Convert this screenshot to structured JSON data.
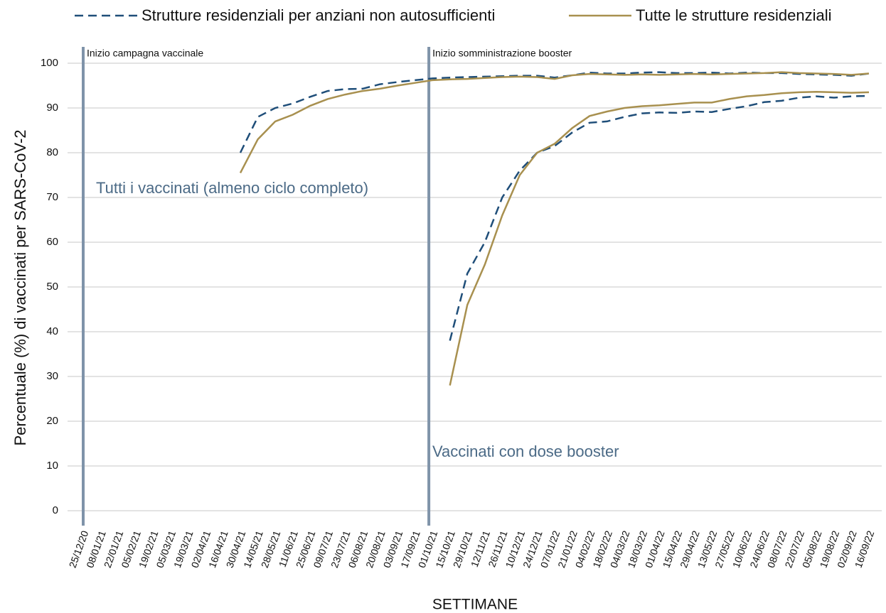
{
  "chart_data": {
    "type": "line",
    "y_label": "Percentuale (%) di vaccinati per SARS-CoV-2",
    "x_label": "SETTIMANE",
    "categories": [
      "25/12/20",
      "08/01/21",
      "22/01/21",
      "05/02/21",
      "19/02/21",
      "05/03/21",
      "19/03/21",
      "02/04/21",
      "16/04/21",
      "30/04/21",
      "14/05/21",
      "28/05/21",
      "11/06/21",
      "25/06/21",
      "09/07/21",
      "23/07/21",
      "06/08/21",
      "20/08/21",
      "03/09/21",
      "17/09/21",
      "01/10/21",
      "15/10/21",
      "29/10/21",
      "12/11/21",
      "26/11/21",
      "10/12/21",
      "24/12/21",
      "07/01/22",
      "21/01/22",
      "04/02/22",
      "18/02/22",
      "04/03/22",
      "18/03/22",
      "01/04/22",
      "15/04/22",
      "29/04/22",
      "13/05/22",
      "27/05/22",
      "10/06/22",
      "24/06/22",
      "08/07/22",
      "22/07/22",
      "05/08/22",
      "19/08/22",
      "02/09/22",
      "16/09/22"
    ],
    "series": [
      {
        "name": "Strutture residenziali per anziani non autosufficienti",
        "color": "#1f4e79",
        "dashed": true,
        "values": [
          null,
          null,
          null,
          null,
          null,
          null,
          null,
          null,
          null,
          80,
          88,
          90,
          91,
          92.5,
          93.8,
          94.2,
          94.3,
          95.3,
          95.8,
          96.2,
          96.6,
          96.8,
          96.9,
          97,
          97.1,
          97.2,
          97.2,
          96.8,
          97.3,
          97.9,
          97.7,
          97.7,
          97.9,
          98,
          97.8,
          97.8,
          97.9,
          97.7,
          97.9,
          97.8,
          97.8,
          97.6,
          97.5,
          97.4,
          97.2,
          97.7
        ],
        "booster_values": [
          null,
          null,
          null,
          null,
          null,
          null,
          null,
          null,
          null,
          null,
          null,
          null,
          null,
          null,
          null,
          null,
          null,
          null,
          null,
          null,
          null,
          38,
          53,
          60,
          70,
          76,
          80,
          81.5,
          84.5,
          86.7,
          87,
          88,
          88.8,
          89,
          88.9,
          89.2,
          89.1,
          89.8,
          90.4,
          91.3,
          91.6,
          92.3,
          92.6,
          92.3,
          92.6,
          92.7
        ]
      },
      {
        "name": "Tutte le strutture residenziali",
        "color": "#a8904f",
        "dashed": false,
        "values": [
          null,
          null,
          null,
          null,
          null,
          null,
          null,
          null,
          null,
          75.5,
          83,
          87,
          88.5,
          90.5,
          92,
          93,
          93.8,
          94.3,
          95,
          95.6,
          96.2,
          96.4,
          96.5,
          96.7,
          96.9,
          97,
          96.9,
          96.5,
          97.3,
          97.6,
          97.5,
          97.4,
          97.5,
          97.4,
          97.5,
          97.6,
          97.5,
          97.6,
          97.7,
          97.8,
          98,
          97.8,
          97.7,
          97.6,
          97.4,
          97.7
        ],
        "booster_values": [
          null,
          null,
          null,
          null,
          null,
          null,
          null,
          null,
          null,
          null,
          null,
          null,
          null,
          null,
          null,
          null,
          null,
          null,
          null,
          null,
          null,
          28,
          46,
          55,
          66,
          75,
          80,
          82,
          85.5,
          88.2,
          89.2,
          90,
          90.4,
          90.6,
          90.9,
          91.2,
          91.2,
          92,
          92.6,
          92.9,
          93.3,
          93.5,
          93.6,
          93.5,
          93.4,
          93.5
        ]
      }
    ],
    "ylim": [
      0,
      100
    ],
    "yticks": [
      0,
      10,
      20,
      30,
      40,
      50,
      60,
      70,
      80,
      90,
      100
    ],
    "grid": true,
    "vlines": [
      {
        "x": "25/12/20",
        "label": "Inizio campagna vaccinale",
        "color": "#7f93a9"
      },
      {
        "x": "01/10/21",
        "label": "Inizio somministrazione booster",
        "color": "#7f93a9"
      }
    ],
    "annotations": [
      "Tutti i vaccinati (almeno ciclo completo)",
      "Vaccinati con dose booster"
    ]
  }
}
